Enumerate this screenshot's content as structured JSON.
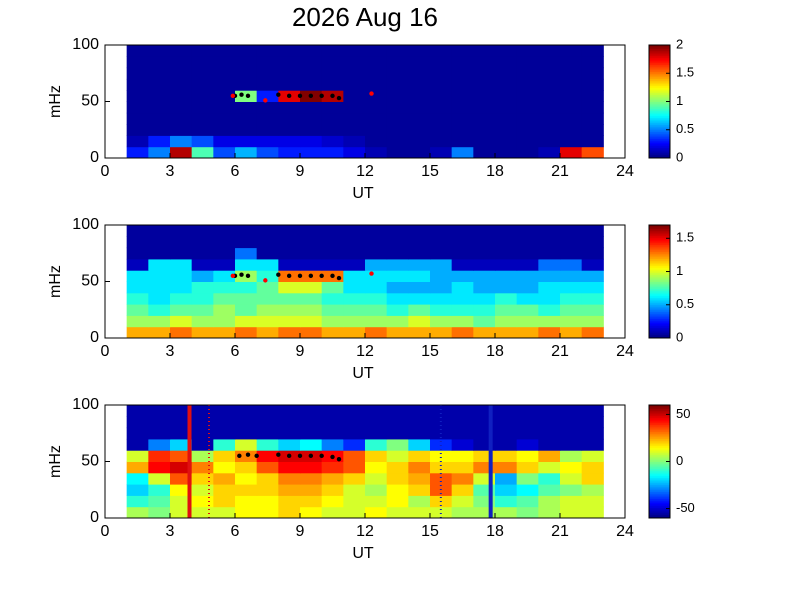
{
  "chart_data": [
    {
      "type": "heatmap",
      "title": "2026 Aug 16",
      "xlabel": "UT",
      "ylabel": "mHz",
      "colormap": "jet",
      "xlim": [
        0,
        24
      ],
      "xticks": [
        0,
        3,
        6,
        9,
        12,
        15,
        18,
        21,
        24
      ],
      "ylim": [
        0,
        100
      ],
      "yticks": [
        0,
        50,
        100
      ],
      "x": [
        1.5,
        2.5,
        3.5,
        4.5,
        5.5,
        6.5,
        7.5,
        8.5,
        9.5,
        10.5,
        11.5,
        12.5,
        13.5,
        14.5,
        15.5,
        16.5,
        17.5,
        18.5,
        19.5,
        20.5,
        21.5,
        22.5
      ],
      "y": [
        5,
        15,
        25,
        35,
        45,
        55,
        65,
        75,
        85,
        95
      ],
      "clim": [
        0,
        2
      ],
      "cticks": [
        0,
        0.5,
        1,
        1.5,
        2
      ],
      "z": [
        [
          0.3,
          0.5,
          1.9,
          0.9,
          0.4,
          0.6,
          0.4,
          0.3,
          0.3,
          0.3,
          0.2,
          0.1,
          0.05,
          0.05,
          0.1,
          0.5,
          0.05,
          0.05,
          0.05,
          0.1,
          1.8,
          1.6
        ],
        [
          0.1,
          0.3,
          0.5,
          0.4,
          0.2,
          0.2,
          0.2,
          0.2,
          0.2,
          0.15,
          0.1,
          0.05,
          0.05,
          0.05,
          0.05,
          0.05,
          0.05,
          0.05,
          0.05,
          0.05,
          0.05,
          0.05
        ],
        [
          0.05,
          0.05,
          0.05,
          0.05,
          0.05,
          0.05,
          0.05,
          0.05,
          0.05,
          0.05,
          0.05,
          0.05,
          0.05,
          0.05,
          0.05,
          0.05,
          0.05,
          0.05,
          0.05,
          0.05,
          0.05,
          0.05
        ],
        [
          0.05,
          0.05,
          0.05,
          0.05,
          0.05,
          0.05,
          0.05,
          0.05,
          0.05,
          0.05,
          0.05,
          0.05,
          0.05,
          0.05,
          0.05,
          0.05,
          0.05,
          0.05,
          0.05,
          0.05,
          0.05,
          0.05
        ],
        [
          0.05,
          0.05,
          0.05,
          0.05,
          0.05,
          0.05,
          0.05,
          0.05,
          0.05,
          0.05,
          0.05,
          0.05,
          0.05,
          0.05,
          0.05,
          0.05,
          0.05,
          0.05,
          0.05,
          0.05,
          0.05,
          0.05
        ],
        [
          0.05,
          0.05,
          0.05,
          0.05,
          0.05,
          1.0,
          0.3,
          1.8,
          2,
          1.9,
          0.05,
          0.05,
          0.05,
          0.05,
          0.05,
          0.05,
          0.05,
          0.05,
          0.05,
          0.05,
          0.05,
          0.05
        ],
        [
          0.05,
          0.05,
          0.05,
          0.05,
          0.05,
          0.05,
          0.05,
          0.05,
          0.05,
          0.05,
          0.05,
          0.05,
          0.05,
          0.05,
          0.05,
          0.05,
          0.05,
          0.05,
          0.05,
          0.05,
          0.05,
          0.05
        ],
        [
          0.05,
          0.05,
          0.05,
          0.05,
          0.05,
          0.05,
          0.05,
          0.05,
          0.05,
          0.05,
          0.05,
          0.05,
          0.05,
          0.05,
          0.05,
          0.05,
          0.05,
          0.05,
          0.05,
          0.05,
          0.05,
          0.05
        ],
        [
          0.05,
          0.05,
          0.05,
          0.05,
          0.05,
          0.05,
          0.05,
          0.05,
          0.05,
          0.05,
          0.05,
          0.05,
          0.05,
          0.05,
          0.05,
          0.05,
          0.05,
          0.05,
          0.05,
          0.05,
          0.05,
          0.05
        ],
        [
          0.05,
          0.05,
          0.05,
          0.05,
          0.05,
          0.05,
          0.05,
          0.05,
          0.05,
          0.05,
          0.05,
          0.05,
          0.05,
          0.05,
          0.05,
          0.05,
          0.05,
          0.05,
          0.05,
          0.05,
          0.05,
          0.05
        ]
      ],
      "points": [
        {
          "color": "#000000",
          "x": [
            6.0,
            6.3,
            6.6,
            8.0,
            8.5,
            9.0,
            9.5,
            10.0,
            10.5,
            10.8
          ],
          "y": [
            55,
            56,
            55,
            56,
            55,
            55,
            55,
            55,
            55,
            53
          ]
        },
        {
          "color": "#ff0000",
          "x": [
            5.9,
            7.4,
            12.3
          ],
          "y": [
            55,
            51,
            57
          ]
        }
      ]
    },
    {
      "type": "heatmap",
      "xlabel": "UT",
      "ylabel": "mHz",
      "colormap": "jet",
      "xlim": [
        0,
        24
      ],
      "xticks": [
        0,
        3,
        6,
        9,
        12,
        15,
        18,
        21,
        24
      ],
      "ylim": [
        0,
        100
      ],
      "yticks": [
        0,
        50,
        100
      ],
      "x": [
        1.5,
        2.5,
        3.5,
        4.5,
        5.5,
        6.5,
        7.5,
        8.5,
        9.5,
        10.5,
        11.5,
        12.5,
        13.5,
        14.5,
        15.5,
        16.5,
        17.5,
        18.5,
        19.5,
        20.5,
        21.5,
        22.5
      ],
      "y": [
        5,
        15,
        25,
        35,
        45,
        55,
        65,
        75,
        85,
        95
      ],
      "clim": [
        0,
        1.7
      ],
      "cticks": [
        0,
        0.5,
        1,
        1.5
      ],
      "z": [
        [
          1.2,
          1.2,
          1.3,
          1.2,
          1.2,
          1.3,
          1.2,
          1.3,
          1.3,
          1.2,
          1.2,
          1.3,
          1.2,
          1.2,
          1.2,
          1.3,
          1.2,
          1.2,
          1.2,
          1.3,
          1.2,
          1.3
        ],
        [
          0.9,
          0.9,
          1.0,
          0.9,
          0.9,
          1.0,
          1.0,
          1.0,
          1.0,
          0.9,
          0.9,
          0.9,
          0.9,
          1.0,
          0.9,
          0.9,
          0.8,
          0.9,
          0.9,
          0.9,
          0.9,
          0.9
        ],
        [
          0.8,
          0.7,
          0.8,
          0.8,
          0.9,
          0.8,
          0.9,
          0.9,
          0.9,
          0.8,
          0.8,
          0.8,
          0.7,
          0.8,
          0.7,
          0.7,
          0.7,
          0.8,
          0.8,
          0.7,
          0.8,
          0.8
        ],
        [
          0.7,
          0.6,
          0.7,
          0.7,
          0.8,
          0.8,
          0.8,
          0.8,
          0.8,
          0.7,
          0.7,
          0.7,
          0.6,
          0.6,
          0.6,
          0.6,
          0.6,
          0.7,
          0.6,
          0.6,
          0.7,
          0.7
        ],
        [
          0.6,
          0.6,
          0.6,
          0.7,
          0.7,
          0.7,
          0.8,
          1.0,
          1.0,
          0.8,
          0.6,
          0.6,
          0.5,
          0.5,
          0.5,
          0.6,
          0.5,
          0.5,
          0.5,
          0.6,
          0.6,
          0.6
        ],
        [
          0.6,
          0.6,
          0.6,
          0.5,
          0.6,
          0.9,
          0.7,
          1.3,
          1.3,
          1.3,
          0.6,
          0.6,
          0.6,
          0.6,
          0.5,
          0.5,
          0.5,
          0.5,
          0.5,
          0.5,
          0.5,
          0.5
        ],
        [
          0.1,
          0.6,
          0.6,
          0.1,
          0.1,
          0.6,
          0.6,
          0.1,
          0.1,
          0.1,
          0.1,
          0.5,
          0.5,
          0.5,
          0.5,
          0.1,
          0.1,
          0.1,
          0.1,
          0.4,
          0.4,
          0.1
        ],
        [
          0.05,
          0.05,
          0.05,
          0.05,
          0.05,
          0.4,
          0.05,
          0.05,
          0.05,
          0.05,
          0.05,
          0.05,
          0.05,
          0.05,
          0.05,
          0.05,
          0.05,
          0.05,
          0.05,
          0.05,
          0.05,
          0.05
        ],
        [
          0.05,
          0.05,
          0.05,
          0.05,
          0.05,
          0.05,
          0.05,
          0.05,
          0.05,
          0.05,
          0.05,
          0.05,
          0.05,
          0.05,
          0.05,
          0.05,
          0.05,
          0.05,
          0.05,
          0.05,
          0.05,
          0.05
        ],
        [
          0.05,
          0.05,
          0.05,
          0.05,
          0.05,
          0.05,
          0.05,
          0.05,
          0.05,
          0.05,
          0.05,
          0.05,
          0.05,
          0.05,
          0.05,
          0.05,
          0.05,
          0.05,
          0.05,
          0.05,
          0.05,
          0.05
        ]
      ],
      "points": [
        {
          "color": "#000000",
          "x": [
            6.0,
            6.3,
            6.6,
            8.0,
            8.5,
            9.0,
            9.5,
            10.0,
            10.5,
            10.8
          ],
          "y": [
            55,
            56,
            55,
            56,
            55,
            55,
            55,
            55,
            55,
            53
          ]
        },
        {
          "color": "#ff0000",
          "x": [
            5.9,
            7.4,
            12.3
          ],
          "y": [
            55,
            51,
            57
          ]
        }
      ]
    },
    {
      "type": "heatmap",
      "xlabel": "UT",
      "ylabel": "mHz",
      "colormap": "jet",
      "xlim": [
        0,
        24
      ],
      "xticks": [
        0,
        3,
        6,
        9,
        12,
        15,
        18,
        21,
        24
      ],
      "ylim": [
        0,
        100
      ],
      "yticks": [
        0,
        50,
        100
      ],
      "x": [
        1.5,
        2.5,
        3.5,
        4.5,
        5.5,
        6.5,
        7.5,
        8.5,
        9.5,
        10.5,
        11.5,
        12.5,
        13.5,
        14.5,
        15.5,
        16.5,
        17.5,
        18.5,
        19.5,
        20.5,
        21.5,
        22.5
      ],
      "y": [
        5,
        15,
        25,
        35,
        45,
        55,
        65,
        75,
        85,
        95
      ],
      "clim": [
        -60,
        60
      ],
      "cticks": [
        -50,
        0,
        50
      ],
      "z": [
        [
          5,
          0,
          10,
          10,
          10,
          15,
          15,
          20,
          15,
          10,
          10,
          15,
          10,
          10,
          10,
          5,
          5,
          5,
          0,
          5,
          10,
          10
        ],
        [
          -10,
          -5,
          10,
          15,
          20,
          15,
          15,
          20,
          20,
          15,
          10,
          10,
          15,
          5,
          20,
          10,
          0,
          -10,
          -5,
          5,
          10,
          10
        ],
        [
          -20,
          -10,
          15,
          10,
          20,
          20,
          20,
          25,
          25,
          20,
          10,
          5,
          15,
          20,
          35,
          20,
          -5,
          -20,
          -15,
          -5,
          0,
          5
        ],
        [
          -15,
          10,
          35,
          20,
          25,
          15,
          20,
          30,
          30,
          25,
          20,
          10,
          20,
          25,
          35,
          30,
          10,
          -25,
          0,
          -10,
          10,
          20
        ],
        [
          25,
          45,
          50,
          30,
          15,
          20,
          35,
          45,
          45,
          40,
          35,
          15,
          20,
          30,
          20,
          20,
          30,
          30,
          20,
          10,
          15,
          20
        ],
        [
          10,
          40,
          35,
          5,
          20,
          30,
          45,
          50,
          50,
          45,
          35,
          20,
          10,
          20,
          15,
          15,
          20,
          20,
          15,
          25,
          5,
          10
        ],
        [
          -55,
          -30,
          -20,
          -55,
          -10,
          10,
          -10,
          -20,
          -15,
          -30,
          -40,
          -10,
          0,
          -20,
          -40,
          -50,
          -55,
          -55,
          -50,
          -55,
          -55,
          -55
        ],
        [
          -55,
          -55,
          -55,
          -55,
          -55,
          -55,
          -55,
          -55,
          -55,
          -55,
          -55,
          -55,
          -55,
          -55,
          -55,
          -55,
          -55,
          -55,
          -55,
          -55,
          -55,
          -55
        ],
        [
          -55,
          -55,
          -55,
          -55,
          -55,
          -55,
          -55,
          -55,
          -55,
          -55,
          -55,
          -55,
          -55,
          -55,
          -55,
          -55,
          -55,
          -55,
          -55,
          -55,
          -55,
          -55
        ],
        [
          -55,
          -55,
          -55,
          -55,
          -55,
          -55,
          -55,
          -55,
          -55,
          -55,
          -55,
          -55,
          -55,
          -55,
          -55,
          -55,
          -55,
          -55,
          -55,
          -55,
          -55,
          -55
        ]
      ],
      "points": [
        {
          "color": "#000000",
          "x": [
            6.2,
            6.6,
            7.0,
            8.0,
            8.5,
            9.0,
            9.5,
            10.0,
            10.5,
            10.8
          ],
          "y": [
            55,
            56,
            55,
            56,
            55,
            55,
            55,
            55,
            54,
            52
          ]
        }
      ],
      "vlines": [
        {
          "x": 3.9,
          "color": "#e01010",
          "style": "solid"
        },
        {
          "x": 4.8,
          "color": "#e01010",
          "style": "dotted"
        },
        {
          "x": 15.5,
          "color": "#1020c0",
          "style": "dotted"
        },
        {
          "x": 17.8,
          "color": "#1020c0",
          "style": "solid"
        }
      ]
    }
  ]
}
